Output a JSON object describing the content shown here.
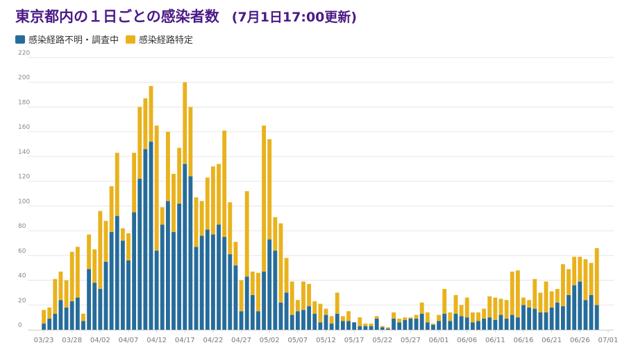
{
  "title": "東京都内の１日ごとの感染者数",
  "update_note": "(7月1日17:00更新)",
  "colors": {
    "unknown": "#266c9a",
    "known": "#e9b21d",
    "title": "#4b1a86",
    "grid": "#e5e5e5"
  },
  "chart_data": {
    "type": "bar",
    "stacked": true,
    "ylim": [
      0,
      220
    ],
    "yticks": [
      0,
      20,
      40,
      60,
      80,
      100,
      120,
      140,
      160,
      180,
      200,
      220
    ],
    "xlabel": "",
    "ylabel": "",
    "legend_position": "top-left",
    "grid": true,
    "x_tick_labels": [
      "03/23",
      "03/28",
      "04/02",
      "04/07",
      "04/12",
      "04/17",
      "04/22",
      "04/27",
      "05/02",
      "05/07",
      "05/12",
      "05/17",
      "05/22",
      "05/27",
      "06/01",
      "06/06",
      "06/11",
      "06/16",
      "06/21",
      "06/26",
      "07/01"
    ],
    "x_tick_every": 5,
    "categories": [
      "03/23",
      "03/24",
      "03/25",
      "03/26",
      "03/27",
      "03/28",
      "03/29",
      "03/30",
      "03/31",
      "04/01",
      "04/02",
      "04/03",
      "04/04",
      "04/05",
      "04/06",
      "04/07",
      "04/08",
      "04/09",
      "04/10",
      "04/11",
      "04/12",
      "04/13",
      "04/14",
      "04/15",
      "04/16",
      "04/17",
      "04/18",
      "04/19",
      "04/20",
      "04/21",
      "04/22",
      "04/23",
      "04/24",
      "04/25",
      "04/26",
      "04/27",
      "04/28",
      "04/29",
      "04/30",
      "05/01",
      "05/02",
      "05/03",
      "05/04",
      "05/05",
      "05/06",
      "05/07",
      "05/08",
      "05/09",
      "05/10",
      "05/11",
      "05/12",
      "05/13",
      "05/14",
      "05/15",
      "05/16",
      "05/17",
      "05/18",
      "05/19",
      "05/20",
      "05/21",
      "05/22",
      "05/23",
      "05/24",
      "05/25",
      "05/26",
      "05/27",
      "05/28",
      "05/29",
      "05/30",
      "05/31",
      "06/01",
      "06/02",
      "06/03",
      "06/04",
      "06/05",
      "06/06",
      "06/07",
      "06/08",
      "06/09",
      "06/10",
      "06/11",
      "06/12",
      "06/13",
      "06/14",
      "06/15",
      "06/16",
      "06/17",
      "06/18",
      "06/19",
      "06/20",
      "06/21",
      "06/22",
      "06/23",
      "06/24",
      "06/25",
      "06/26",
      "06/27",
      "06/28",
      "06/29",
      "06/30",
      "07/01"
    ],
    "series": [
      {
        "name": "感染経路不明・調査中",
        "values": [
          5,
          9,
          13,
          24,
          18,
          23,
          26,
          7,
          49,
          38,
          33,
          55,
          79,
          92,
          72,
          56,
          95,
          122,
          146,
          152,
          64,
          85,
          104,
          79,
          102,
          134,
          124,
          67,
          76,
          81,
          77,
          85,
          75,
          61,
          52,
          15,
          43,
          28,
          15,
          47,
          73,
          64,
          22,
          30,
          12,
          15,
          16,
          19,
          13,
          6,
          12,
          5,
          13,
          7,
          7,
          6,
          3,
          3,
          3,
          9,
          2,
          1,
          9,
          6,
          8,
          9,
          9,
          13,
          6,
          4,
          7,
          13,
          7,
          13,
          11,
          10,
          6,
          7,
          9,
          10,
          8,
          12,
          9,
          12,
          10,
          20,
          18,
          17,
          14,
          14,
          18,
          22,
          19,
          28,
          36,
          39,
          24,
          28,
          20,
          0,
          0
        ],
        "color_key": "unknown"
      },
      {
        "name": "感染経路特定",
        "values": [
          11,
          9,
          28,
          23,
          22,
          40,
          41,
          6,
          28,
          27,
          63,
          33,
          37,
          51,
          10,
          22,
          48,
          58,
          41,
          45,
          101,
          14,
          56,
          47,
          45,
          66,
          56,
          40,
          28,
          42,
          55,
          49,
          86,
          42,
          19,
          25,
          69,
          19,
          31,
          118,
          81,
          27,
          64,
          28,
          27,
          9,
          23,
          18,
          10,
          15,
          5,
          6,
          17,
          4,
          8,
          0,
          7,
          2,
          2,
          2,
          1,
          1,
          5,
          3,
          2,
          1,
          3,
          9,
          8,
          1,
          5,
          20,
          7,
          15,
          9,
          16,
          8,
          7,
          8,
          17,
          18,
          13,
          15,
          35,
          38,
          6,
          6,
          24,
          16,
          25,
          13,
          11,
          34,
          21,
          23,
          20,
          33,
          26,
          46,
          0,
          0
        ],
        "color_key": "known"
      }
    ]
  }
}
